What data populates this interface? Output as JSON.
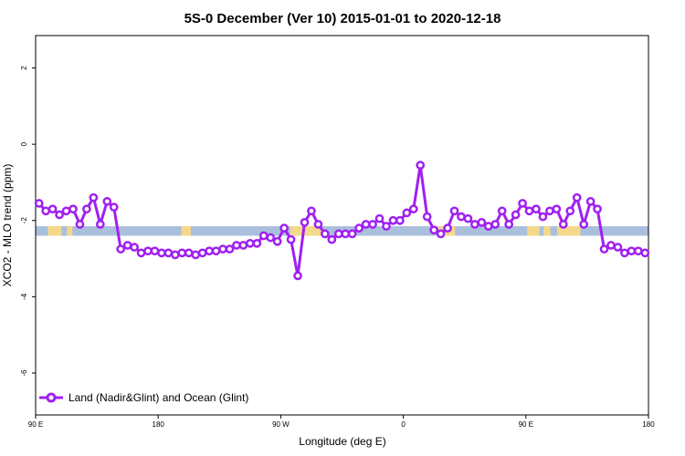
{
  "chart_data": {
    "type": "line",
    "title": "5S-0 December (Ver 10)   2015-01-01 to 2020-12-18",
    "xlabel": "Longitude (deg E)",
    "ylabel": "XCO2 - MLO trend (ppm)",
    "xlim": [
      90,
      540
    ],
    "ylim": [
      -7.1,
      2.85
    ],
    "x_ticks": [
      {
        "value": 90,
        "label": "90 E"
      },
      {
        "value": 180,
        "label": "180"
      },
      {
        "value": 270,
        "label": "90 W"
      },
      {
        "value": 360,
        "label": "0"
      },
      {
        "value": 450,
        "label": "90 E"
      },
      {
        "value": 540,
        "label": "180"
      }
    ],
    "y_ticks": [
      {
        "value": 2,
        "label": "2"
      },
      {
        "value": 0,
        "label": "0"
      },
      {
        "value": -2,
        "label": "-2"
      },
      {
        "value": -4,
        "label": "-4"
      },
      {
        "value": -6,
        "label": "-6"
      }
    ],
    "band": {
      "y_min": -2.4,
      "y_max": -2.15,
      "ocean_color": "#a9bfdc",
      "land_color": "#f5d98a",
      "land_segments": [
        [
          99,
          109
        ],
        [
          113,
          117
        ],
        [
          197,
          204
        ],
        [
          277,
          300
        ],
        [
          385,
          398
        ],
        [
          451,
          460
        ],
        [
          463,
          468
        ],
        [
          473,
          490
        ]
      ]
    },
    "legend": {
      "position": "bottom-left"
    },
    "series": [
      {
        "name": "Land (Nadir&Glint) and Ocean (Glint)",
        "color": "#a020f0",
        "x": [
          92.5,
          97.5,
          102.5,
          107.5,
          112.5,
          117.5,
          122.5,
          127.5,
          132.5,
          137.5,
          142.5,
          147.5,
          152.5,
          157.5,
          162.5,
          167.5,
          172.5,
          177.5,
          182.5,
          187.5,
          192.5,
          197.5,
          202.5,
          207.5,
          212.5,
          217.5,
          222.5,
          227.5,
          232.5,
          237.5,
          242.5,
          247.5,
          252.5,
          257.5,
          262.5,
          267.5,
          272.5,
          277.5,
          282.5,
          287.5,
          292.5,
          297.5,
          302.5,
          307.5,
          312.5,
          317.5,
          322.5,
          327.5,
          332.5,
          337.5,
          342.5,
          347.5,
          352.5,
          357.5,
          362.5,
          367.5,
          372.5,
          377.5,
          382.5,
          387.5,
          392.5,
          397.5,
          402.5,
          407.5,
          412.5,
          417.5,
          422.5,
          427.5,
          432.5,
          437.5,
          442.5,
          447.5,
          452.5,
          457.5,
          462.5,
          467.5,
          472.5,
          477.5,
          482.5,
          487.5,
          492.5,
          497.5,
          502.5,
          507.5,
          512.5,
          517.5,
          522.5,
          527.5,
          532.5,
          537.5
        ],
        "y": [
          -1.55,
          -1.75,
          -1.7,
          -1.85,
          -1.75,
          -1.7,
          -2.1,
          -1.7,
          -1.4,
          -2.1,
          -1.5,
          -1.65,
          -2.75,
          -2.65,
          -2.7,
          -2.85,
          -2.8,
          -2.8,
          -2.85,
          -2.85,
          -2.9,
          -2.85,
          -2.85,
          -2.9,
          -2.85,
          -2.8,
          -2.8,
          -2.75,
          -2.75,
          -2.65,
          -2.65,
          -2.6,
          -2.6,
          -2.4,
          -2.45,
          -2.55,
          -2.2,
          -2.5,
          -3.45,
          -2.05,
          -1.75,
          -2.1,
          -2.35,
          -2.5,
          -2.35,
          -2.35,
          -2.35,
          -2.2,
          -2.1,
          -2.1,
          -1.95,
          -2.15,
          -2.0,
          -2.0,
          -1.8,
          -1.7,
          -0.55,
          -1.9,
          -2.25,
          -2.35,
          -2.2,
          -1.75,
          -1.9,
          -1.95,
          -2.1,
          -2.05,
          -2.15,
          -2.1,
          -1.75,
          -2.1,
          -1.85,
          -1.55,
          -1.75,
          -1.7,
          -1.9,
          -1.75,
          -1.7,
          -2.1,
          -1.75,
          -1.4,
          -2.1,
          -1.5,
          -1.7,
          -2.75,
          -2.65,
          -2.7,
          -2.85,
          -2.8,
          -2.8,
          -2.85
        ]
      }
    ]
  }
}
